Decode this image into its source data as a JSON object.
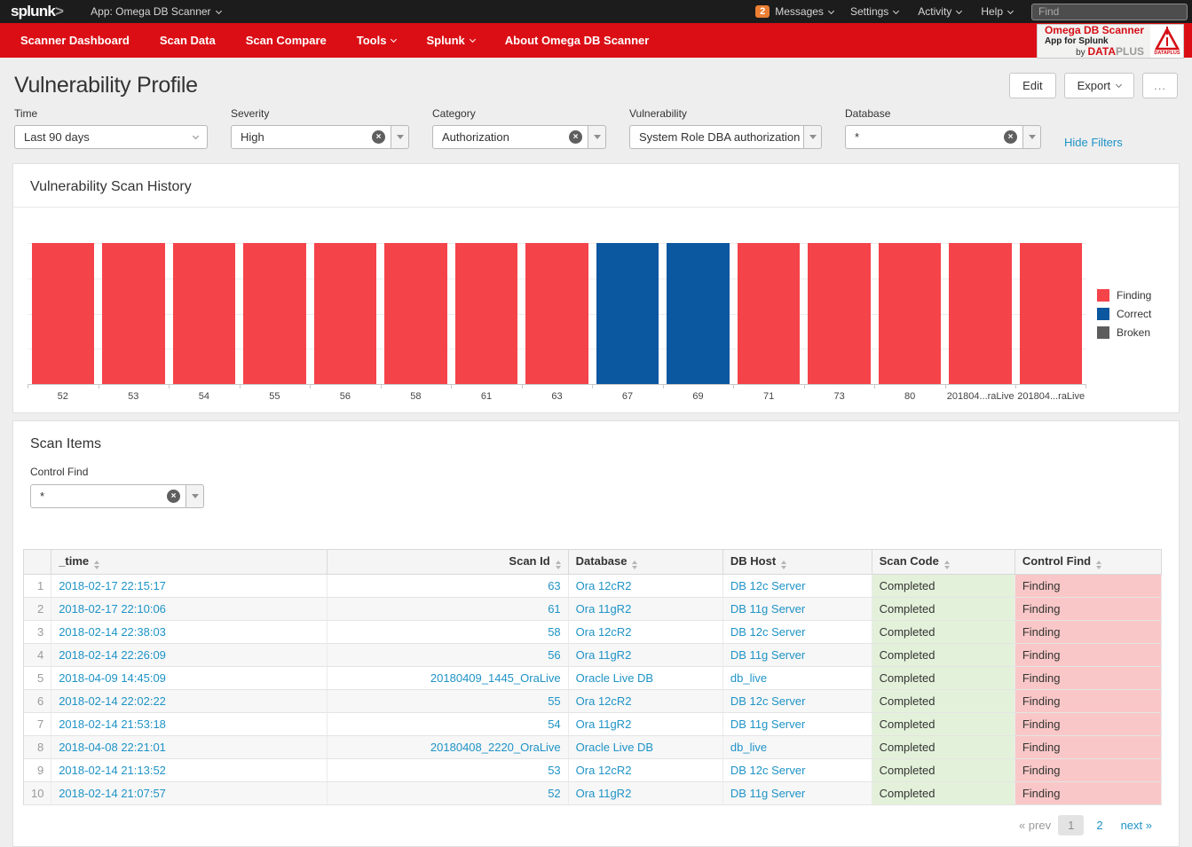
{
  "topbar": {
    "logo": "splunk",
    "logo_gt": ">",
    "app_menu": "App: Omega DB Scanner",
    "messages": {
      "count": "2",
      "label": "Messages"
    },
    "menus": [
      {
        "label": "Settings"
      },
      {
        "label": "Activity"
      },
      {
        "label": "Help"
      }
    ],
    "find_placeholder": "Find"
  },
  "nav": {
    "items": [
      {
        "label": "Scanner Dashboard"
      },
      {
        "label": "Scan Data"
      },
      {
        "label": "Scan Compare"
      },
      {
        "label": "Tools"
      },
      {
        "label": "Splunk"
      },
      {
        "label": "About Omega DB Scanner"
      }
    ],
    "brand": {
      "title": "Omega DB Scanner",
      "subtitle": "App for Splunk",
      "by": "by ",
      "brand_red": "DATA",
      "brand_gray": "PLUS",
      "logo_caption": "DATAPLUS"
    }
  },
  "page": {
    "title": "Vulnerability Profile",
    "buttons": {
      "edit": "Edit",
      "export": "Export",
      "more": "..."
    }
  },
  "filters": {
    "time": {
      "label": "Time",
      "value": "Last 90 days"
    },
    "severity": {
      "label": "Severity",
      "value": "High"
    },
    "category": {
      "label": "Category",
      "value": "Authorization"
    },
    "vulnerability": {
      "label": "Vulnerability",
      "value": "System Role DBA authorization"
    },
    "database": {
      "label": "Database",
      "value": "*"
    },
    "hide_filters": "Hide Filters"
  },
  "chart_data": {
    "type": "bar",
    "title": "Vulnerability Scan History",
    "categories": [
      "52",
      "53",
      "54",
      "55",
      "56",
      "58",
      "61",
      "63",
      "67",
      "69",
      "71",
      "73",
      "80",
      "201804...raLive",
      "201804...raLive"
    ],
    "series": [
      {
        "name": "Finding",
        "color": "#F5434A",
        "values": [
          1,
          1,
          1,
          1,
          1,
          1,
          1,
          1,
          0,
          0,
          1,
          1,
          1,
          1,
          1
        ]
      },
      {
        "name": "Correct",
        "color": "#0B57A0",
        "values": [
          0,
          0,
          0,
          0,
          0,
          0,
          0,
          0,
          1,
          1,
          0,
          0,
          0,
          0,
          0
        ]
      },
      {
        "name": "Broken",
        "color": "#5C5C5C",
        "values": [
          0,
          0,
          0,
          0,
          0,
          0,
          0,
          0,
          0,
          0,
          0,
          0,
          0,
          0,
          0
        ]
      }
    ],
    "ylim": [
      0,
      1
    ],
    "grid": true,
    "legend_position": "right"
  },
  "scan_items": {
    "title": "Scan Items",
    "control_find": {
      "label": "Control Find",
      "value": "*"
    },
    "table": {
      "columns": [
        "_time",
        "Scan Id",
        "Database",
        "DB Host",
        "Scan Code",
        "Control Find"
      ],
      "rows": [
        {
          "n": "1",
          "time": "2018-02-17 22:15:17",
          "scan_id": "63",
          "database": "Ora 12cR2",
          "db_host": "DB 12c Server",
          "scan_code": "Completed",
          "control_find": "Finding"
        },
        {
          "n": "2",
          "time": "2018-02-17 22:10:06",
          "scan_id": "61",
          "database": "Ora 11gR2",
          "db_host": "DB 11g Server",
          "scan_code": "Completed",
          "control_find": "Finding"
        },
        {
          "n": "3",
          "time": "2018-02-14 22:38:03",
          "scan_id": "58",
          "database": "Ora 12cR2",
          "db_host": "DB 12c Server",
          "scan_code": "Completed",
          "control_find": "Finding"
        },
        {
          "n": "4",
          "time": "2018-02-14 22:26:09",
          "scan_id": "56",
          "database": "Ora 11gR2",
          "db_host": "DB 11g Server",
          "scan_code": "Completed",
          "control_find": "Finding"
        },
        {
          "n": "5",
          "time": "2018-04-09 14:45:09",
          "scan_id": "20180409_1445_OraLive",
          "database": "Oracle Live DB",
          "db_host": "db_live",
          "scan_code": "Completed",
          "control_find": "Finding"
        },
        {
          "n": "6",
          "time": "2018-02-14 22:02:22",
          "scan_id": "55",
          "database": "Ora 12cR2",
          "db_host": "DB 12c Server",
          "scan_code": "Completed",
          "control_find": "Finding"
        },
        {
          "n": "7",
          "time": "2018-02-14 21:53:18",
          "scan_id": "54",
          "database": "Ora 11gR2",
          "db_host": "DB 11g Server",
          "scan_code": "Completed",
          "control_find": "Finding"
        },
        {
          "n": "8",
          "time": "2018-04-08 22:21:01",
          "scan_id": "20180408_2220_OraLive",
          "database": "Oracle Live DB",
          "db_host": "db_live",
          "scan_code": "Completed",
          "control_find": "Finding"
        },
        {
          "n": "9",
          "time": "2018-02-14 21:13:52",
          "scan_id": "53",
          "database": "Ora 12cR2",
          "db_host": "DB 12c Server",
          "scan_code": "Completed",
          "control_find": "Finding"
        },
        {
          "n": "10",
          "time": "2018-02-14 21:07:57",
          "scan_id": "52",
          "database": "Ora 11gR2",
          "db_host": "DB 11g Server",
          "scan_code": "Completed",
          "control_find": "Finding"
        }
      ]
    },
    "pagination": {
      "prev": "« prev",
      "pages": [
        "1",
        "2"
      ],
      "current": "1",
      "next": "next »"
    }
  },
  "colors": {
    "nav_red": "#DB0E15",
    "link_blue": "#1E93C6",
    "finding_red": "#F5434A",
    "correct_blue": "#0B57A0",
    "broken_gray": "#5C5C5C",
    "scan_code_bg": "#E3F1DA",
    "control_find_bg": "#F9C7C7"
  }
}
